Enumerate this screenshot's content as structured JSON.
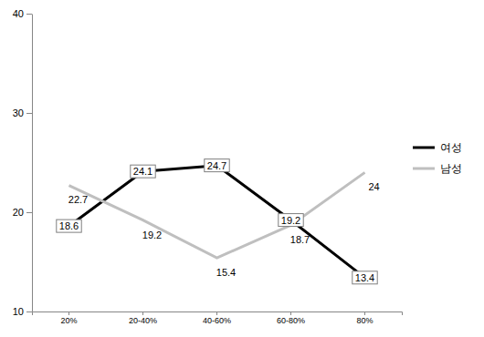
{
  "chart_data": {
    "type": "line",
    "categories": [
      "20%",
      "20-40%",
      "40-60%",
      "60-80%",
      "80%"
    ],
    "series": [
      {
        "name": "여성",
        "color": "#000000",
        "values": [
          18.6,
          24.1,
          24.7,
          19.2,
          13.4
        ]
      },
      {
        "name": "남성",
        "color": "#bfbfbf",
        "values": [
          22.7,
          19.2,
          15.4,
          18.7,
          24.0
        ]
      }
    ],
    "ylim": [
      10,
      40
    ],
    "yticks": [
      10,
      20,
      30,
      40
    ],
    "grid": false,
    "legend": "right",
    "data_labels": true
  }
}
